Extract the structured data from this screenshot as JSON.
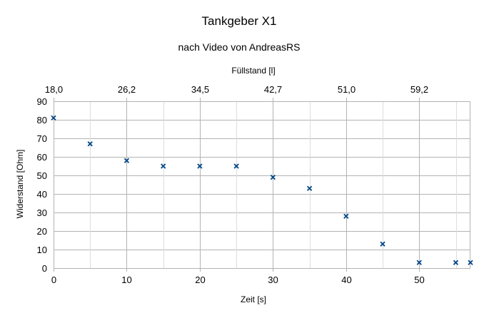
{
  "chart_data": {
    "type": "scatter",
    "title": "Tankgeber X1",
    "subtitle": "nach Video von AndreasRS",
    "xlabel": "Zeit [s]",
    "ylabel": "Widerstand [Ohm]",
    "x2label": "Füllstand [l]",
    "xlim": [
      0,
      57
    ],
    "ylim": [
      0,
      90
    ],
    "x_ticks": [
      0,
      10,
      20,
      30,
      40,
      50
    ],
    "x_tick_labels": [
      "0",
      "10",
      "20",
      "30",
      "40",
      "50"
    ],
    "y_ticks": [
      0,
      10,
      20,
      30,
      40,
      50,
      60,
      70,
      80,
      90
    ],
    "y_tick_labels": [
      "0",
      "10",
      "20",
      "30",
      "40",
      "50",
      "60",
      "70",
      "80",
      "90"
    ],
    "x2_tick_labels": [
      "18,0",
      "26,2",
      "34,5",
      "42,7",
      "51,0",
      "59,2"
    ],
    "x2_tick_positions_in_x_units": [
      0,
      10,
      20,
      30,
      40,
      50
    ],
    "grid": true,
    "marker": "x",
    "marker_color": "#004586",
    "series": [
      {
        "x": [
          0,
          5,
          10,
          15,
          20,
          25,
          30,
          35,
          40,
          45,
          50,
          55,
          57
        ],
        "y": [
          81,
          67,
          58,
          55,
          55,
          55,
          49,
          43,
          28,
          13,
          3,
          3,
          3
        ]
      }
    ]
  },
  "colors": {
    "grid": "#b3b3b3",
    "axis": "#b3b3b3",
    "marker": "#004586"
  }
}
